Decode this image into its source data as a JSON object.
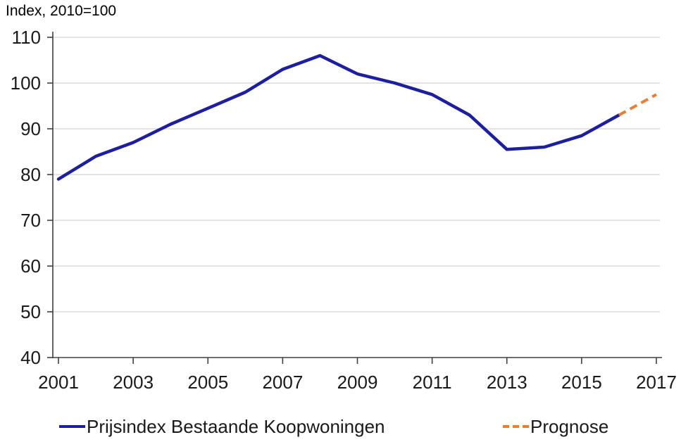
{
  "chart_data": {
    "type": "line",
    "title": "Index, 2010=100",
    "xlabel": "",
    "ylabel": "",
    "x": [
      2001,
      2002,
      2003,
      2004,
      2005,
      2006,
      2007,
      2008,
      2009,
      2010,
      2011,
      2012,
      2013,
      2014,
      2015,
      2016,
      2017
    ],
    "xticks": [
      2001,
      2003,
      2005,
      2007,
      2009,
      2011,
      2013,
      2015,
      2017
    ],
    "yticks": [
      40,
      50,
      60,
      70,
      80,
      90,
      100,
      110
    ],
    "ylim": [
      40,
      110
    ],
    "grid": "horizontal",
    "legend_position": "bottom",
    "series": [
      {
        "name": "Prijsindex Bestaande Koopwoningen",
        "style": "solid",
        "color": "#1B1FA0",
        "values": [
          79,
          84,
          87,
          91,
          94.5,
          98,
          103,
          106,
          102,
          100,
          97.5,
          93,
          85.5,
          86,
          88.5,
          93,
          null
        ]
      },
      {
        "name": "Prognose",
        "style": "dashed",
        "color": "#ED7D31",
        "values": [
          null,
          null,
          null,
          null,
          null,
          null,
          null,
          null,
          null,
          null,
          null,
          null,
          null,
          null,
          null,
          93,
          97.5
        ]
      }
    ]
  },
  "colors": {
    "grid": "#E4E4E4",
    "axis": "#404040",
    "tick_text": "#1A1A1A",
    "background": "#FFFFFF"
  }
}
